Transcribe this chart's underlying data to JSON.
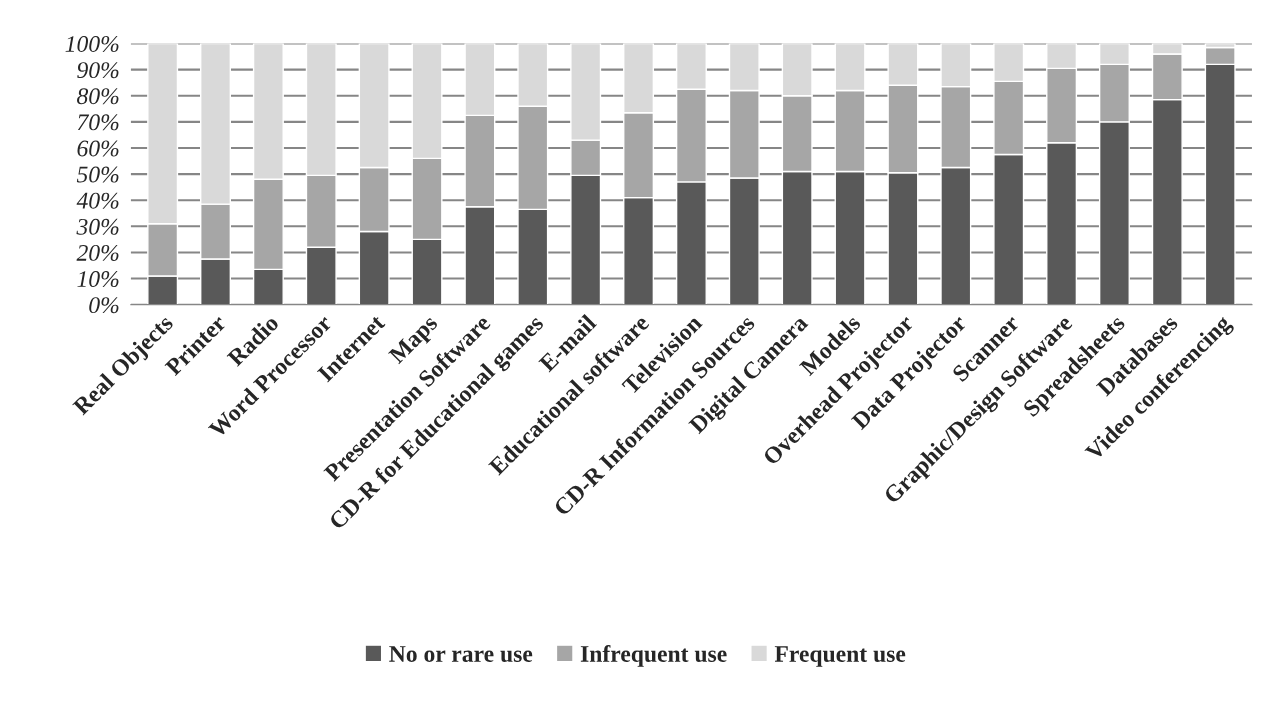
{
  "chart_data": {
    "type": "bar",
    "stacked": true,
    "categories": [
      "Real Objects",
      "Printer",
      "Radio",
      "Word Processor",
      "Internet",
      "Maps",
      "Presentation Software",
      "CD-R for Educational games",
      "E-mail",
      "Educational software",
      "Television",
      "CD-R Information Sources",
      "Digital Camera",
      "Models",
      "Overhead Projector",
      "Data Projector",
      "Scanner",
      "Graphic/Design Software",
      "Spreadsheets",
      "Databases",
      "Video conferencing"
    ],
    "series": [
      {
        "name": "No or rare use",
        "color": "#595959",
        "values": [
          11,
          17.5,
          13.5,
          22,
          28,
          25,
          37.5,
          36.5,
          49.5,
          41,
          47,
          48.5,
          51,
          51,
          50.5,
          52.5,
          57.5,
          62,
          70,
          78.5,
          92
        ]
      },
      {
        "name": "Infrequent use",
        "color": "#a6a6a6",
        "values": [
          20,
          21,
          34.5,
          27.5,
          24.5,
          31,
          35,
          39.5,
          13.5,
          32.5,
          35.5,
          33.5,
          29,
          31,
          33.5,
          31,
          28,
          28.5,
          22,
          17.5,
          6.5
        ]
      },
      {
        "name": "Frequent use",
        "color": "#d9d9d9",
        "values": [
          69,
          61.5,
          52,
          50.5,
          47.5,
          44,
          27.5,
          24,
          37,
          26.5,
          17.5,
          18,
          20,
          18,
          16,
          16.5,
          14.5,
          9.5,
          8,
          4,
          1.5
        ]
      }
    ],
    "ylim": [
      0,
      100
    ],
    "yticks": [
      {
        "value": 0,
        "label": "0%"
      },
      {
        "value": 10,
        "label": "10%"
      },
      {
        "value": 20,
        "label": "20%"
      },
      {
        "value": 30,
        "label": "30%"
      },
      {
        "value": 40,
        "label": "40%"
      },
      {
        "value": 50,
        "label": "50%"
      },
      {
        "value": 60,
        "label": "60%"
      },
      {
        "value": 70,
        "label": "70%"
      },
      {
        "value": 80,
        "label": "80%"
      },
      {
        "value": 90,
        "label": "90%"
      },
      {
        "value": 100,
        "label": "100%"
      }
    ],
    "grid": "y",
    "legend": "bottom"
  }
}
